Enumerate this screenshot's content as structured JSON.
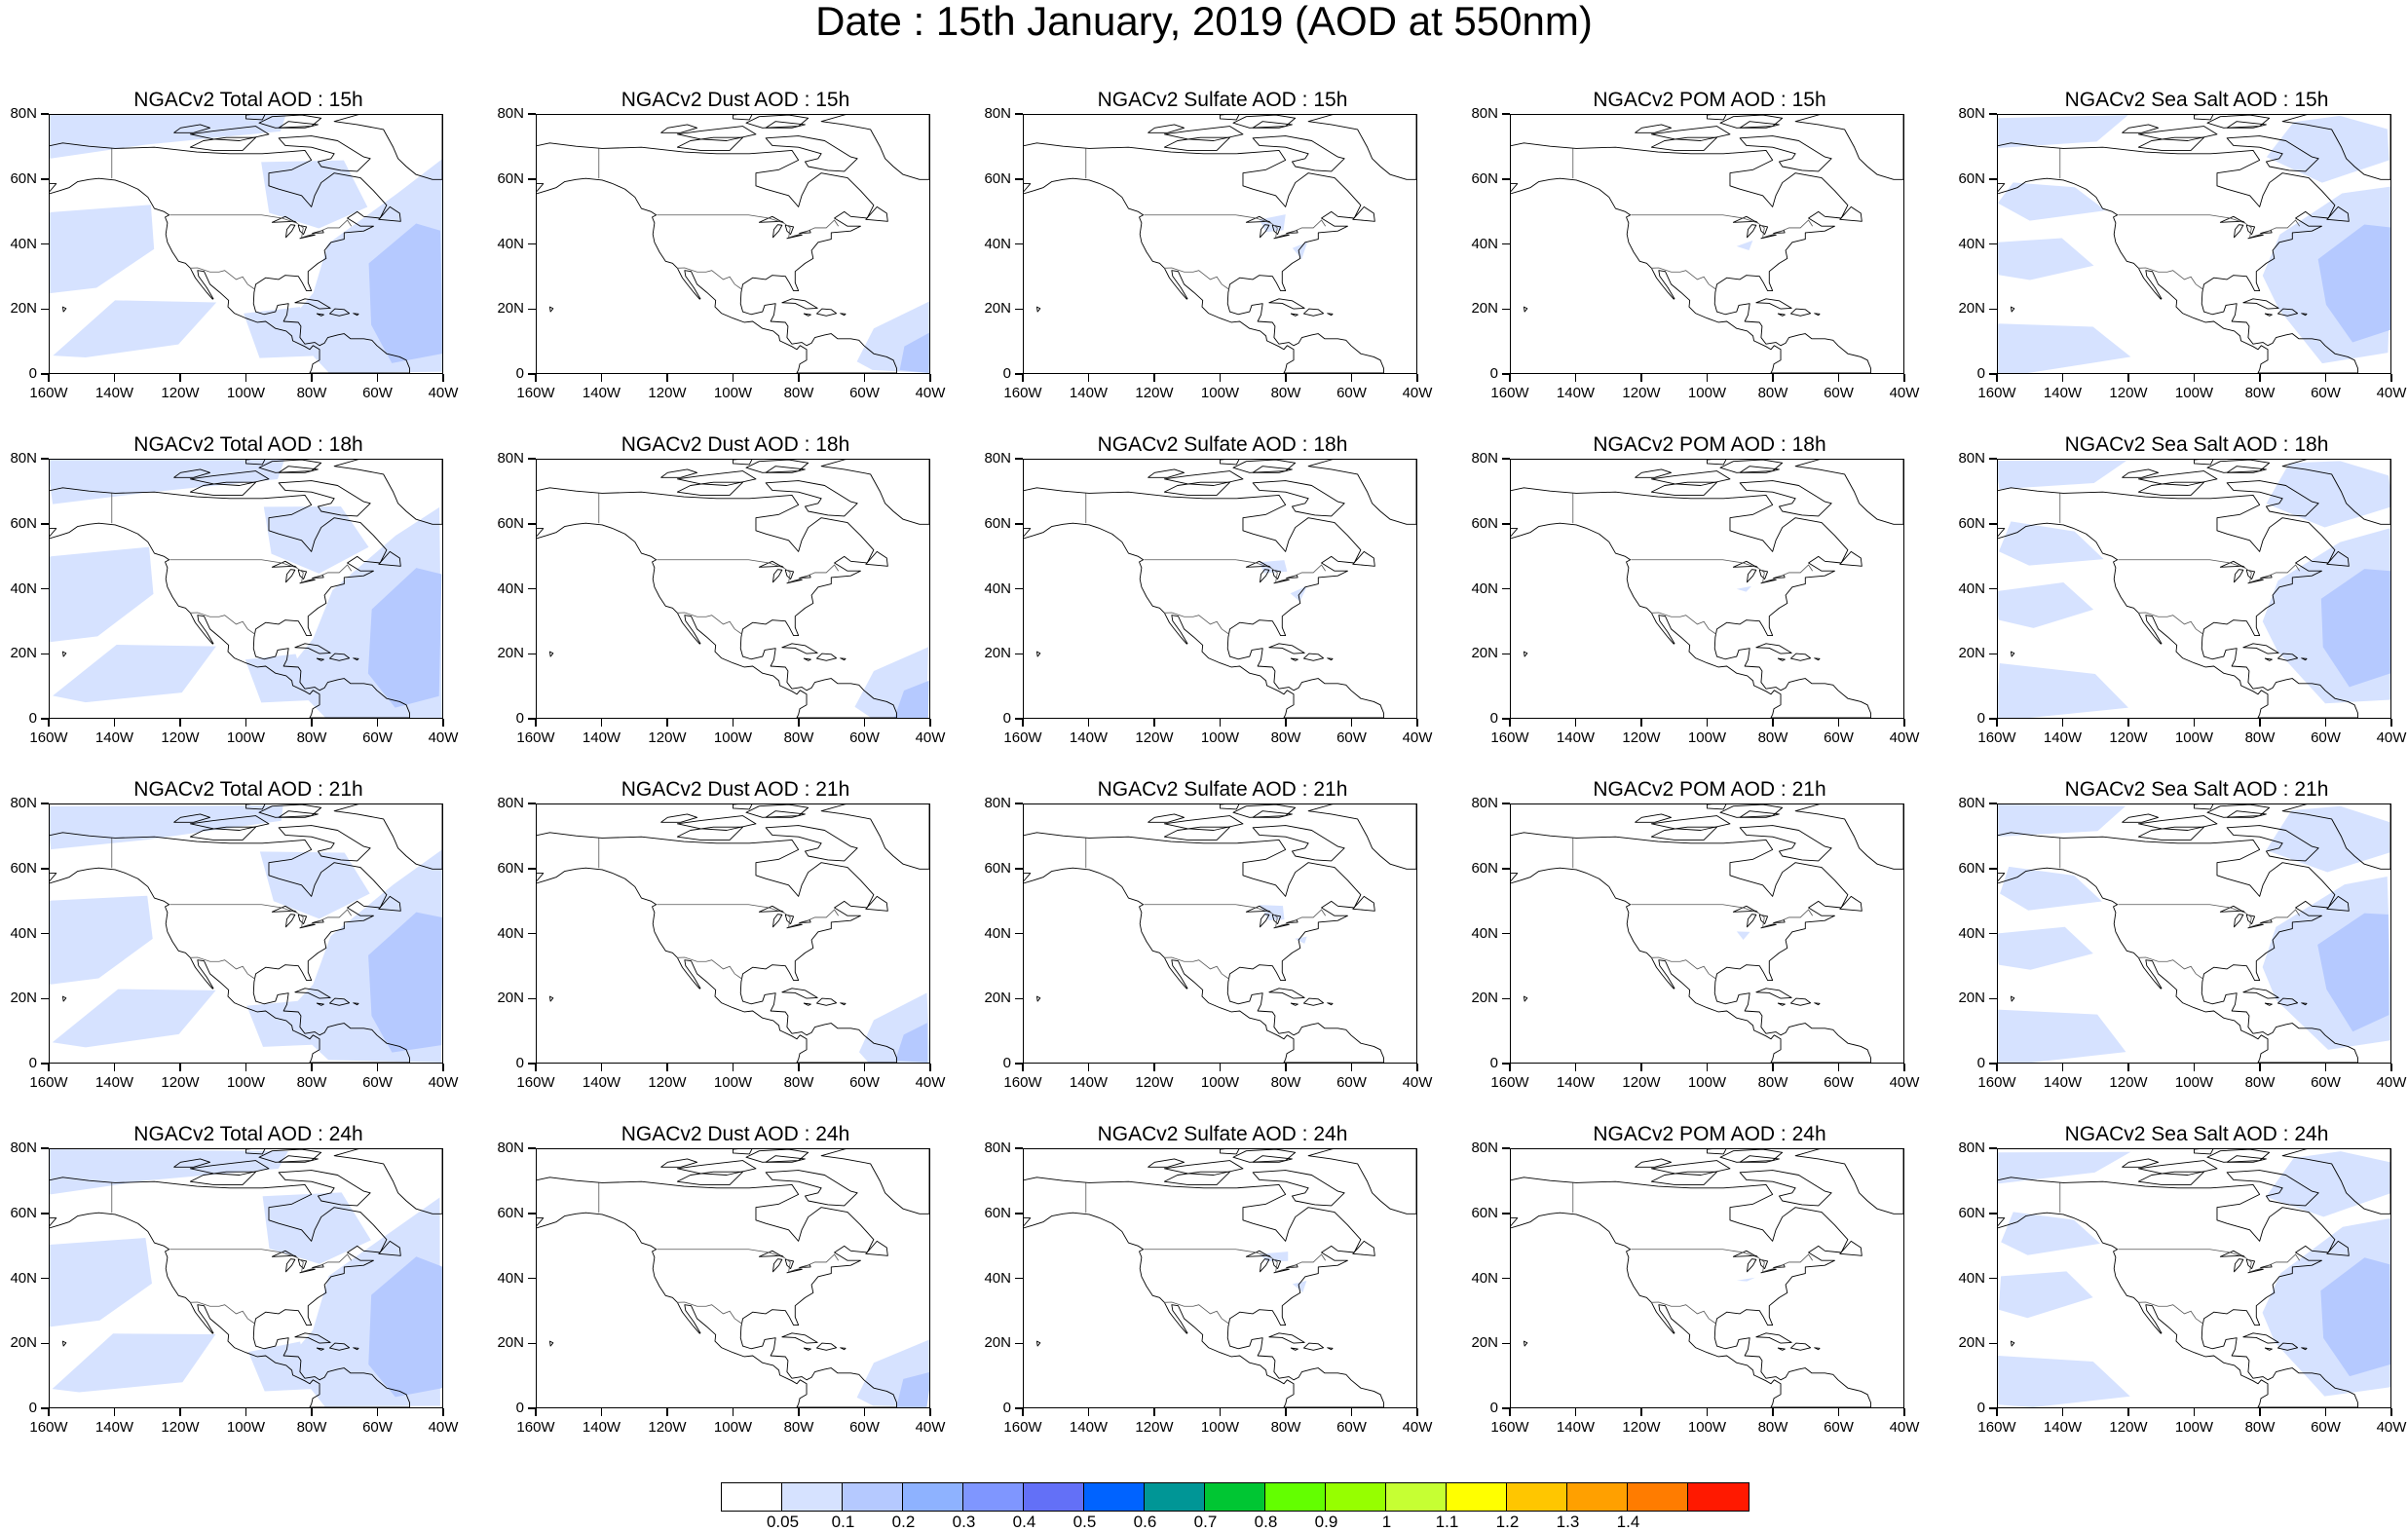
{
  "title": "Date : 15th January, 2019 (AOD at 550nm)",
  "lat_labels": [
    "80N",
    "60N",
    "40N",
    "20N",
    "0"
  ],
  "lon_labels": [
    "160W",
    "140W",
    "120W",
    "100W",
    "80W",
    "60W",
    "40W"
  ],
  "panels": [
    {
      "title": "NGACv2 Total AOD : 15h",
      "species": "total"
    },
    {
      "title": "NGACv2 Dust AOD : 15h",
      "species": "dust"
    },
    {
      "title": "NGACv2 Sulfate AOD : 15h",
      "species": "sulfate"
    },
    {
      "title": "NGACv2 POM AOD : 15h",
      "species": "pom"
    },
    {
      "title": "NGACv2 Sea Salt AOD : 15h",
      "species": "seasalt"
    },
    {
      "title": "NGACv2 Total AOD : 18h",
      "species": "total"
    },
    {
      "title": "NGACv2 Dust AOD : 18h",
      "species": "dust"
    },
    {
      "title": "NGACv2 Sulfate AOD : 18h",
      "species": "sulfate"
    },
    {
      "title": "NGACv2 POM AOD : 18h",
      "species": "pom"
    },
    {
      "title": "NGACv2 Sea Salt AOD : 18h",
      "species": "seasalt"
    },
    {
      "title": "NGACv2 Total AOD : 21h",
      "species": "total"
    },
    {
      "title": "NGACv2 Dust AOD : 21h",
      "species": "dust"
    },
    {
      "title": "NGACv2 Sulfate AOD : 21h",
      "species": "sulfate"
    },
    {
      "title": "NGACv2 POM AOD : 21h",
      "species": "pom"
    },
    {
      "title": "NGACv2 Sea Salt AOD : 21h",
      "species": "seasalt"
    },
    {
      "title": "NGACv2 Total AOD : 24h",
      "species": "total"
    },
    {
      "title": "NGACv2 Dust AOD : 24h",
      "species": "dust"
    },
    {
      "title": "NGACv2 Sulfate AOD : 24h",
      "species": "sulfate"
    },
    {
      "title": "NGACv2 POM AOD : 24h",
      "species": "pom"
    },
    {
      "title": "NGACv2 Sea Salt  AOD : 24h",
      "species": "seasalt"
    }
  ],
  "colorbar": {
    "labels": [
      "0.05",
      "0.1",
      "0.2",
      "0.3",
      "0.4",
      "0.5",
      "0.6",
      "0.7",
      "0.8",
      "0.9",
      "1",
      "1.1",
      "1.2",
      "1.3",
      "1.4"
    ],
    "colors": [
      "#ffffff",
      "#d6e2ff",
      "#b5c9ff",
      "#8eb2ff",
      "#7f96ff",
      "#6370f7",
      "#0063ff",
      "#009696",
      "#00c633",
      "#63ff00",
      "#96ff00",
      "#c6ff33",
      "#ffff00",
      "#ffc600",
      "#ffa000",
      "#ff7c00",
      "#ff1900"
    ]
  },
  "colors": {
    "low_aod_fill": "#d6e2ff",
    "medium_aod_fill": "#b5c9ff",
    "coastline": "#000000",
    "border": "#555555"
  }
}
